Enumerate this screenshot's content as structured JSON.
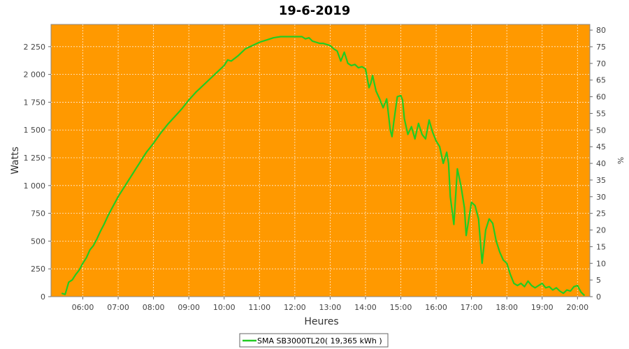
{
  "chart_data": {
    "type": "line",
    "title": "19-6-2019",
    "xlabel": "Heures",
    "ylabel": "Watts",
    "y2label": "%",
    "xlim": [
      5.1,
      20.35
    ],
    "ylim": [
      0,
      2450
    ],
    "y2lim": [
      0,
      81.7
    ],
    "x_ticks": [
      6,
      7,
      8,
      9,
      10,
      11,
      12,
      13,
      14,
      15,
      16,
      17,
      18,
      19,
      20
    ],
    "x_tick_labels": [
      "06:00",
      "07:00",
      "08:00",
      "09:00",
      "10:00",
      "11:00",
      "12:00",
      "13:00",
      "14:00",
      "15:00",
      "16:00",
      "17:00",
      "18:00",
      "19:00",
      "20:00"
    ],
    "y_ticks": [
      0,
      250,
      500,
      750,
      1000,
      1250,
      1500,
      1750,
      2000,
      2250
    ],
    "y_tick_labels": [
      "0",
      "250",
      "500",
      "750",
      "1 000",
      "1 250",
      "1 500",
      "1 750",
      "2 000",
      "2 250"
    ],
    "y2_ticks": [
      0,
      5,
      10,
      15,
      20,
      25,
      30,
      35,
      40,
      45,
      50,
      55,
      60,
      65,
      70,
      75,
      80
    ],
    "y2_tick_labels": [
      "0",
      "5",
      "10",
      "15",
      "20",
      "25",
      "30",
      "35",
      "40",
      "45",
      "50",
      "55",
      "60",
      "65",
      "70",
      "75",
      "80"
    ],
    "grid": true,
    "legend": "bottom-center",
    "colors": {
      "plot_bg": "#FF9900",
      "line": "#22CC22",
      "grid": "#FFFFFF"
    },
    "series": [
      {
        "name": "SMA SB3000TL20( 19,365 kWh )",
        "x": [
          5.4,
          5.5,
          5.6,
          5.7,
          5.8,
          5.9,
          6.0,
          6.1,
          6.2,
          6.3,
          6.4,
          6.5,
          6.6,
          6.7,
          6.8,
          6.9,
          7.0,
          7.1,
          7.2,
          7.3,
          7.4,
          7.5,
          7.6,
          7.7,
          7.8,
          7.9,
          8.0,
          8.2,
          8.4,
          8.6,
          8.8,
          9.0,
          9.2,
          9.4,
          9.6,
          9.8,
          10.0,
          10.1,
          10.2,
          10.4,
          10.6,
          10.8,
          11.0,
          11.2,
          11.4,
          11.6,
          11.8,
          12.0,
          12.2,
          12.3,
          12.4,
          12.5,
          12.6,
          12.7,
          12.8,
          12.9,
          13.0,
          13.1,
          13.2,
          13.3,
          13.4,
          13.5,
          13.6,
          13.7,
          13.8,
          13.9,
          14.0,
          14.1,
          14.15,
          14.2,
          14.3,
          14.4,
          14.5,
          14.6,
          14.7,
          14.75,
          14.8,
          14.9,
          15.0,
          15.05,
          15.1,
          15.2,
          15.3,
          15.4,
          15.5,
          15.6,
          15.7,
          15.8,
          15.9,
          16.0,
          16.1,
          16.2,
          16.3,
          16.35,
          16.4,
          16.5,
          16.6,
          16.7,
          16.8,
          16.85,
          16.9,
          17.0,
          17.1,
          17.2,
          17.25,
          17.3,
          17.4,
          17.5,
          17.6,
          17.7,
          17.8,
          17.9,
          18.0,
          18.1,
          18.2,
          18.3,
          18.4,
          18.5,
          18.6,
          18.7,
          18.8,
          18.9,
          19.0,
          19.1,
          19.2,
          19.3,
          19.4,
          19.5,
          19.6,
          19.7,
          19.8,
          19.9,
          20.0,
          20.1,
          20.2
        ],
        "values": [
          30,
          20,
          130,
          150,
          200,
          240,
          300,
          350,
          420,
          460,
          520,
          590,
          650,
          720,
          780,
          840,
          900,
          950,
          1000,
          1050,
          1100,
          1150,
          1200,
          1250,
          1300,
          1340,
          1380,
          1470,
          1550,
          1620,
          1690,
          1770,
          1840,
          1900,
          1960,
          2020,
          2080,
          2130,
          2120,
          2170,
          2230,
          2260,
          2290,
          2310,
          2330,
          2340,
          2340,
          2340,
          2340,
          2320,
          2330,
          2300,
          2290,
          2280,
          2280,
          2270,
          2260,
          2230,
          2210,
          2120,
          2200,
          2100,
          2080,
          2090,
          2060,
          2070,
          2050,
          1880,
          1920,
          1990,
          1850,
          1780,
          1700,
          1780,
          1500,
          1440,
          1570,
          1800,
          1810,
          1770,
          1600,
          1460,
          1530,
          1420,
          1560,
          1460,
          1420,
          1590,
          1480,
          1400,
          1350,
          1200,
          1300,
          1200,
          900,
          650,
          1150,
          1000,
          800,
          550,
          650,
          850,
          820,
          700,
          500,
          300,
          600,
          700,
          660,
          500,
          400,
          330,
          300,
          200,
          120,
          100,
          120,
          90,
          140,
          100,
          80,
          100,
          120,
          80,
          90,
          60,
          80,
          50,
          30,
          60,
          50,
          90,
          100,
          40,
          10
        ]
      }
    ]
  }
}
